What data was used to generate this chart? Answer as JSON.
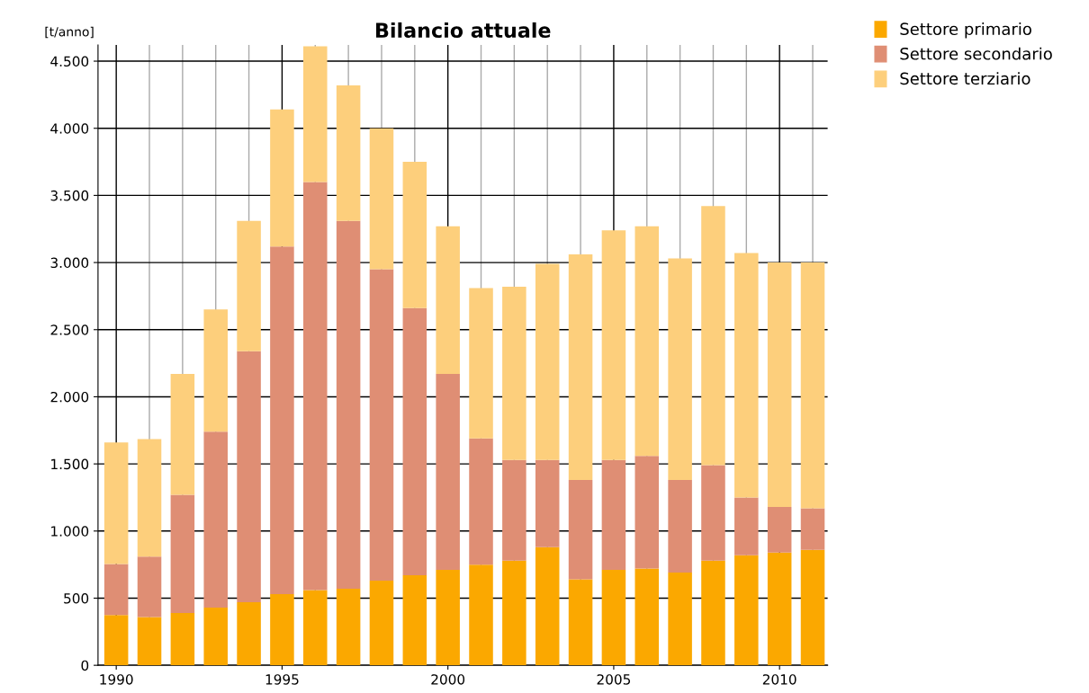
{
  "chart_data": {
    "type": "bar",
    "title": "Bilancio attuale",
    "ylabel": "[t/anno]",
    "x": [
      1990,
      1991,
      1992,
      1993,
      1994,
      1995,
      1996,
      1997,
      1998,
      1999,
      2000,
      2001,
      2002,
      2003,
      2004,
      2005,
      2006,
      2007,
      2008,
      2009,
      2010,
      2011
    ],
    "stacked": true,
    "series": [
      {
        "name": "Settore primario",
        "color": "#fba800",
        "values": [
          375,
          360,
          390,
          430,
          470,
          530,
          560,
          570,
          630,
          670,
          710,
          750,
          780,
          880,
          640,
          710,
          720,
          690,
          780,
          820,
          840,
          860
        ]
      },
      {
        "name": "Settore secondario",
        "color": "#df8e74",
        "values": [
          380,
          450,
          880,
          1310,
          1870,
          2590,
          3040,
          2740,
          2320,
          1990,
          1460,
          940,
          750,
          650,
          740,
          820,
          840,
          690,
          710,
          430,
          340,
          310
        ]
      },
      {
        "name": "Settore terziario",
        "color": "#fdcf7c",
        "values": [
          905,
          875,
          900,
          910,
          970,
          1020,
          1010,
          1010,
          1050,
          1090,
          1100,
          1120,
          1290,
          1460,
          1680,
          1710,
          1710,
          1650,
          1930,
          1820,
          1820,
          1830
        ]
      }
    ],
    "xlim": [
      1989.45,
      2011.45
    ],
    "xticks": [
      1990,
      1995,
      2000,
      2005,
      2010
    ],
    "ylim": [
      0,
      4620
    ],
    "yticks": [
      0,
      500,
      {
        "value": 1000,
        "label": "1.000"
      },
      {
        "value": 1500,
        "label": "1.500"
      },
      {
        "value": 2000,
        "label": "2.000"
      },
      {
        "value": 2500,
        "label": "2.500"
      },
      {
        "value": 3000,
        "label": "3.000"
      },
      {
        "value": 3500,
        "label": "3.500"
      },
      {
        "value": 4000,
        "label": "4.000"
      },
      {
        "value": 4500,
        "label": "4.500"
      }
    ],
    "grid": true,
    "legend": "top right"
  }
}
